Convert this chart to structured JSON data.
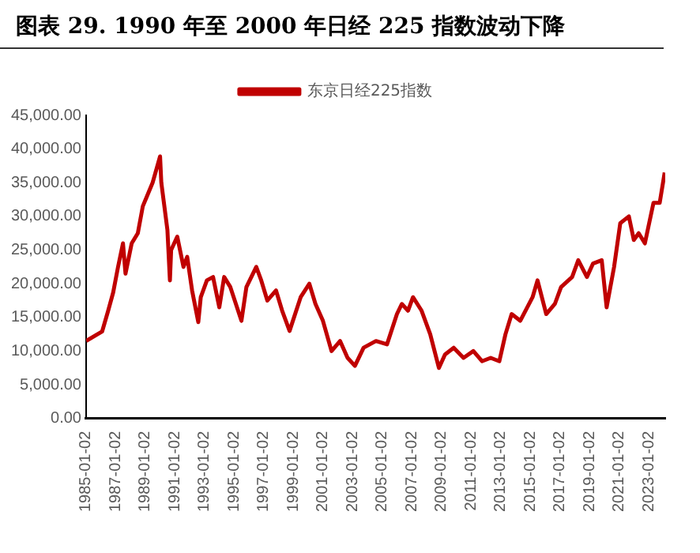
{
  "chart_data": {
    "type": "line",
    "title": "图表 29. 1990 年至 2000 年日经 225 指数波动下降",
    "x": [
      "1985-01-04",
      "1986-02",
      "1986-07",
      "1986-11",
      "1987-03",
      "1987-07",
      "1987-09",
      "1988-02",
      "1988-07",
      "1988-11",
      "1989-07",
      "1990-01",
      "1990-02",
      "1990-07",
      "1990-09",
      "1990-10",
      "1991-03",
      "1991-08",
      "1991-11",
      "1992-03",
      "1992-08",
      "1992-10",
      "1993-03",
      "1993-08",
      "1994-01",
      "1994-05",
      "1994-10",
      "1995-07",
      "1995-11",
      "1996-07",
      "1996-11",
      "1997-04",
      "1997-11",
      "1998-04",
      "1998-10",
      "1999-07",
      "2000-02",
      "2000-07",
      "2001-01",
      "2001-08",
      "2002-03",
      "2002-09",
      "2003-03",
      "2003-10",
      "2004-08",
      "2005-05",
      "2006-01",
      "2006-05",
      "2006-10",
      "2007-02",
      "2007-09",
      "2008-04",
      "2008-11",
      "2009-04",
      "2009-11",
      "2010-07",
      "2011-03",
      "2011-10",
      "2012-05",
      "2012-12",
      "2013-05",
      "2013-10",
      "2014-05",
      "2015-03",
      "2015-07",
      "2016-02",
      "2016-09",
      "2017-02",
      "2017-11",
      "2018-04",
      "2018-11",
      "2019-04",
      "2019-11",
      "2020-03",
      "2020-09",
      "2021-02",
      "2021-09",
      "2022-01",
      "2022-05",
      "2022-10",
      "2023-05",
      "2023-10",
      "2024-02"
    ],
    "series": [
      {
        "name": "东京日经225指数",
        "color": "#c00000",
        "values": [
          11500,
          12900,
          16000,
          18700,
          22500,
          26000,
          21500,
          26000,
          27500,
          31500,
          35000,
          38900,
          35000,
          28000,
          20500,
          25000,
          27000,
          22500,
          24000,
          19000,
          14300,
          18000,
          20500,
          21000,
          16500,
          21000,
          19500,
          14500,
          19500,
          22500,
          20500,
          17500,
          19000,
          16000,
          13000,
          18000,
          20000,
          17000,
          14500,
          10000,
          11500,
          9000,
          7800,
          10500,
          11500,
          11000,
          15500,
          17000,
          16000,
          18000,
          16000,
          12500,
          7500,
          9500,
          10500,
          9000,
          10000,
          8500,
          9000,
          8500,
          12500,
          15500,
          14500,
          18000,
          20500,
          15500,
          17000,
          19500,
          21000,
          23500,
          21000,
          23000,
          23500,
          16500,
          22500,
          29000,
          30000,
          26500,
          27500,
          26000,
          32000,
          32000,
          36500
        ]
      }
    ],
    "xlim": [
      "1985-01-02",
      "2024-02-15"
    ],
    "xticks": [
      "1985-01-02",
      "1987-01-02",
      "1989-01-02",
      "1991-01-02",
      "1993-01-02",
      "1995-01-02",
      "1997-01-02",
      "1999-01-02",
      "2001-01-02",
      "2003-01-02",
      "2005-01-02",
      "2007-01-02",
      "2009-01-02",
      "2011-01-02",
      "2013-01-02",
      "2015-01-02",
      "2017-01-02",
      "2019-01-02",
      "2021-01-02",
      "2023-01-02"
    ],
    "ylim": [
      0,
      45000
    ],
    "yticks": [
      {
        "value": 0,
        "label": "0.00"
      },
      {
        "value": 5000,
        "label": "5,000.00"
      },
      {
        "value": 10000,
        "label": "10,000.00"
      },
      {
        "value": 15000,
        "label": "15,000.00"
      },
      {
        "value": 20000,
        "label": "20,000.00"
      },
      {
        "value": 25000,
        "label": "25,000.00"
      },
      {
        "value": 30000,
        "label": "30,000.00"
      },
      {
        "value": 35000,
        "label": "35,000.00"
      },
      {
        "value": 40000,
        "label": "40,000.00"
      },
      {
        "value": 45000,
        "label": "45,000.00"
      }
    ],
    "grid": false,
    "legend": "top",
    "marker": "none",
    "line_style": "solid"
  }
}
